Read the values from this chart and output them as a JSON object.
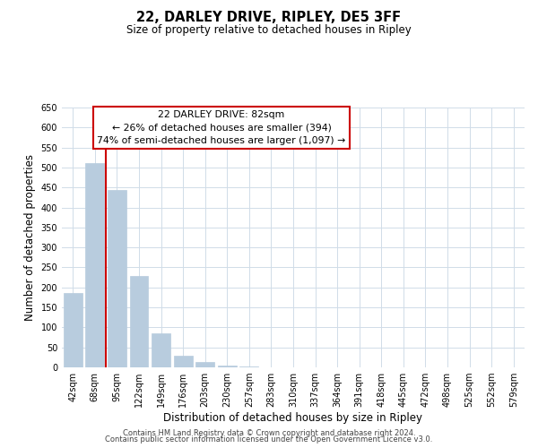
{
  "title": "22, DARLEY DRIVE, RIPLEY, DE5 3FF",
  "subtitle": "Size of property relative to detached houses in Ripley",
  "xlabel": "Distribution of detached houses by size in Ripley",
  "ylabel": "Number of detached properties",
  "categories": [
    "42sqm",
    "68sqm",
    "95sqm",
    "122sqm",
    "149sqm",
    "176sqm",
    "203sqm",
    "230sqm",
    "257sqm",
    "283sqm",
    "310sqm",
    "337sqm",
    "364sqm",
    "391sqm",
    "418sqm",
    "445sqm",
    "472sqm",
    "498sqm",
    "525sqm",
    "552sqm",
    "579sqm"
  ],
  "values": [
    185,
    510,
    443,
    228,
    85,
    29,
    13,
    5,
    2,
    1,
    0,
    0,
    1,
    0,
    0,
    0,
    0,
    0,
    0,
    0,
    1
  ],
  "bar_color": "#b8ccde",
  "bar_edge_color": "#b8ccde",
  "property_line_color": "#cc0000",
  "annotation_line1": "22 DARLEY DRIVE: 82sqm",
  "annotation_line2": "← 26% of detached houses are smaller (394)",
  "annotation_line3": "74% of semi-detached houses are larger (1,097) →",
  "annotation_box_color": "#ffffff",
  "annotation_box_edge": "#cc0000",
  "ylim": [
    0,
    650
  ],
  "yticks": [
    0,
    50,
    100,
    150,
    200,
    250,
    300,
    350,
    400,
    450,
    500,
    550,
    600,
    650
  ],
  "footer_line1": "Contains HM Land Registry data © Crown copyright and database right 2024.",
  "footer_line2": "Contains public sector information licensed under the Open Government Licence v3.0.",
  "background_color": "#ffffff",
  "grid_color": "#d0dce8",
  "title_fontsize": 10.5,
  "subtitle_fontsize": 8.5,
  "axis_label_fontsize": 8.5,
  "tick_fontsize": 7,
  "footer_fontsize": 6
}
